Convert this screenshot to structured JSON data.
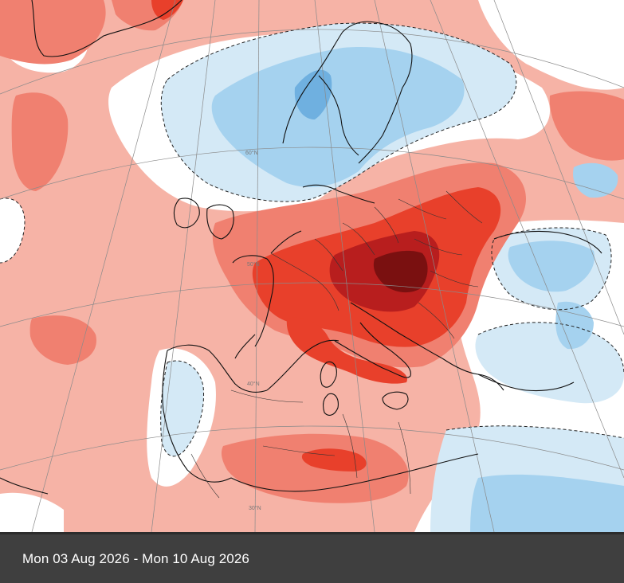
{
  "caption": {
    "text": "Mon 03 Aug 2026 - Mon 10 Aug 2026"
  },
  "map": {
    "latitude_labels": [
      "60°N",
      "50°N",
      "40°N",
      "30°N"
    ],
    "colors": {
      "anomaly_extreme": "#7a1010",
      "anomaly_very_high": "#b81e1e",
      "anomaly_high": "#e8402b",
      "anomaly_moderate": "#f08070",
      "anomaly_slight": "#f6b3a6",
      "anomaly_neutral": "#ffffff",
      "anomaly_cool_slight": "#d4e9f6",
      "anomaly_cool": "#a5d2ef",
      "anomaly_cool_strong": "#6fb0e0",
      "coastline": "#111111",
      "graticule": "#8a8a8a",
      "caption_bar": "#3f3f3f"
    }
  }
}
